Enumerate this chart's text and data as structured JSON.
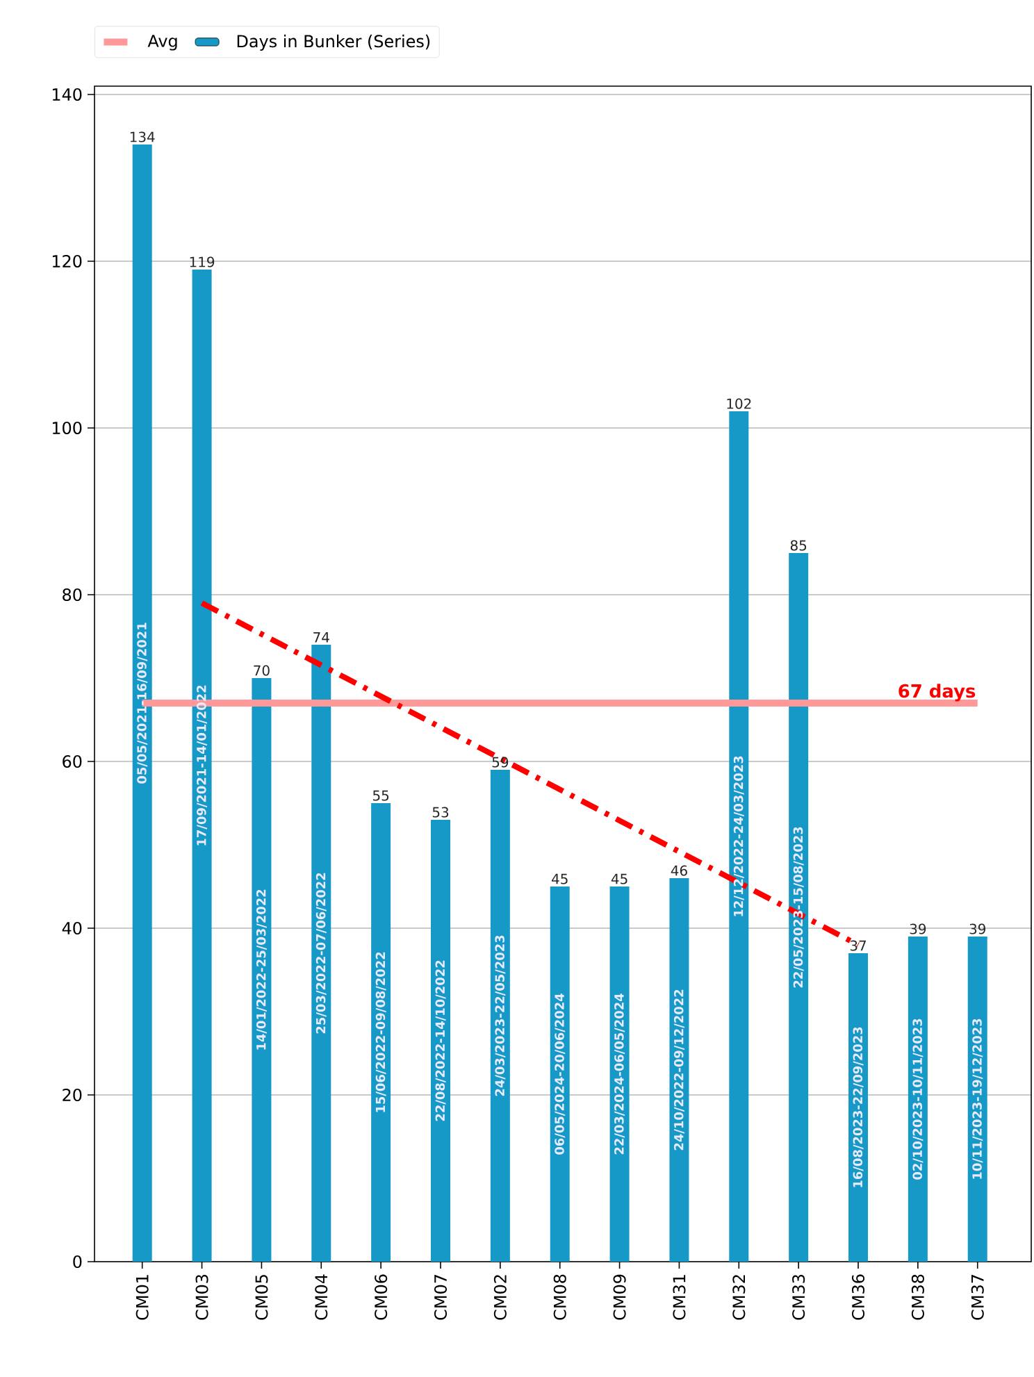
{
  "chart_data": {
    "type": "bar",
    "categories": [
      "CM01",
      "CM03",
      "CM05",
      "CM04",
      "CM06",
      "CM07",
      "CM02",
      "CM08",
      "CM09",
      "CM31",
      "CM32",
      "CM33",
      "CM36",
      "CM38",
      "CM37"
    ],
    "series": [
      {
        "name": "Avg",
        "type": "line",
        "color": "#ff9999",
        "x": [
          "CM01",
          "CM37"
        ],
        "values": [
          67,
          67
        ]
      },
      {
        "name": "Days in Bunker (Series)",
        "color": "#1799c8",
        "values": [
          134,
          119,
          70,
          74,
          55,
          53,
          59,
          45,
          45,
          46,
          102,
          85,
          37,
          39,
          39
        ],
        "value_labels": [
          "134",
          "119",
          "70",
          "74",
          "55",
          "53",
          "59",
          "45",
          "45",
          "46",
          "102",
          "85",
          "37",
          "39",
          "39"
        ]
      },
      {
        "type": "line",
        "color": "#ff0000",
        "line_style": "dashed",
        "x": [
          "CM03",
          "CM36"
        ],
        "values": [
          79,
          38
        ]
      }
    ],
    "ylim": [
      0,
      141
    ],
    "yticks": [
      0,
      20,
      40,
      60,
      80,
      100,
      120,
      140
    ],
    "grid": "y",
    "legend": "top left",
    "annotations": [
      {
        "text": "67 days",
        "x": "CM37",
        "y": 67
      },
      "05/05/2021-16/09/2021",
      "17/09/2021-14/01/2022",
      "14/01/2022-25/03/2022",
      "25/03/2022-07/06/2022",
      "15/06/2022-09/08/2022",
      "22/08/2022-14/10/2022",
      "24/03/2023-22/05/2023",
      "06/05/2024-20/06/2024",
      "22/03/2024-06/05/2024",
      "24/10/2022-09/12/2022",
      "12/12/2022-24/03/2023",
      "22/05/2023-15/08/2023",
      "16/08/2023-22/09/2023",
      "02/10/2023-10/11/2023",
      "10/11/2023-19/12/2023"
    ]
  }
}
